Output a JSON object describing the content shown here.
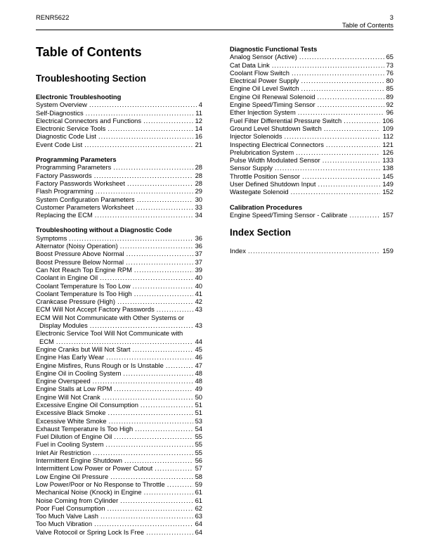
{
  "header": {
    "doc_number": "RENR5622",
    "page_number": "3",
    "section_label": "Table of Contents"
  },
  "title": "Table of Contents",
  "colors": {
    "text": "#000000",
    "page_background": "#ffffff",
    "rule": "#000000"
  },
  "columns": {
    "left": {
      "blocks": [
        {
          "type": "section",
          "label": "Troubleshooting Section"
        },
        {
          "type": "group",
          "label": "Electronic Troubleshooting",
          "entries": [
            {
              "label": "System Overview",
              "page": "4"
            },
            {
              "label": "Self-Diagnostics",
              "page": "11"
            },
            {
              "label": "Electrical Connectors and Functions",
              "page": "12"
            },
            {
              "label": "Electronic Service Tools",
              "page": "14"
            },
            {
              "label": "Diagnostic Code List",
              "page": "16"
            },
            {
              "label": "Event Code List",
              "page": "21"
            }
          ]
        },
        {
          "type": "group",
          "label": "Programming Parameters",
          "entries": [
            {
              "label": "Programming Parameters",
              "page": "28"
            },
            {
              "label": "Factory Passwords",
              "page": "28"
            },
            {
              "label": "Factory Passwords Worksheet",
              "page": "28"
            },
            {
              "label": "Flash Programming",
              "page": "29"
            },
            {
              "label": "System Configuration Parameters",
              "page": "30"
            },
            {
              "label": "Customer Parameters Worksheet",
              "page": "33"
            },
            {
              "label": "Replacing the ECM",
              "page": "34"
            }
          ]
        },
        {
          "type": "group",
          "label": "Troubleshooting without a Diagnostic Code",
          "entries": [
            {
              "label": "Symptoms",
              "page": "36"
            },
            {
              "label": "Alternator (Noisy Operation)",
              "page": "36"
            },
            {
              "label": "Boost Pressure Above Normal",
              "page": "37"
            },
            {
              "label": "Boost Pressure Below Normal",
              "page": "37"
            },
            {
              "label": "Can Not Reach Top Engine RPM",
              "page": "39"
            },
            {
              "label": "Coolant in Engine Oil",
              "page": "40"
            },
            {
              "label": "Coolant Temperature Is Too Low",
              "page": "40"
            },
            {
              "label": "Coolant Temperature Is Too High",
              "page": "41"
            },
            {
              "label": "Crankcase Pressure (High)",
              "page": "42"
            },
            {
              "label": "ECM Will Not Accept Factory Passwords",
              "page": "43"
            },
            {
              "label": "ECM Will Not Communicate with Other Systems or",
              "label2": "Display Modules",
              "page": "43"
            },
            {
              "label": "Electronic Service Tool Will Not Communicate with",
              "label2": "ECM",
              "page": "44"
            },
            {
              "label": "Engine Cranks but Will Not Start",
              "page": "45"
            },
            {
              "label": "Engine Has Early Wear",
              "page": "46"
            },
            {
              "label": "Engine Misfires, Runs Rough or Is Unstable",
              "page": "47"
            },
            {
              "label": "Engine Oil in Cooling System",
              "page": "48"
            },
            {
              "label": "Engine Overspeed",
              "page": "48"
            },
            {
              "label": "Engine Stalls at Low RPM",
              "page": "49"
            },
            {
              "label": "Engine Will Not Crank",
              "page": "50"
            },
            {
              "label": "Excessive Engine Oil Consumption",
              "page": "51"
            },
            {
              "label": "Excessive Black Smoke",
              "page": "51"
            },
            {
              "label": "Excessive White Smoke",
              "page": "53"
            },
            {
              "label": "Exhaust Temperature Is Too High",
              "page": "54"
            },
            {
              "label": "Fuel Dilution of Engine Oil",
              "page": "55"
            },
            {
              "label": "Fuel in Cooling System",
              "page": "55"
            },
            {
              "label": "Inlet Air Restriction",
              "page": "55"
            },
            {
              "label": "Intermittent Engine Shutdown",
              "page": "56"
            },
            {
              "label": "Intermittent Low Power or Power Cutout",
              "page": "57"
            },
            {
              "label": "Low Engine Oil Pressure",
              "page": "58"
            },
            {
              "label": "Low Power/Poor or No Response to Throttle",
              "page": "59"
            },
            {
              "label": "Mechanical Noise (Knock) in Engine",
              "page": "61"
            },
            {
              "label": "Noise Coming from Cylinder",
              "page": "61"
            },
            {
              "label": "Poor Fuel Consumption",
              "page": "62"
            },
            {
              "label": "Too Much Valve Lash",
              "page": "63"
            },
            {
              "label": "Too Much Vibration",
              "page": "64"
            },
            {
              "label": "Valve Rotocoil or Spring Lock Is Free",
              "page": "64"
            }
          ]
        }
      ]
    },
    "right": {
      "blocks": [
        {
          "type": "group",
          "label": "Diagnostic Functional Tests",
          "entries": [
            {
              "label": "Analog Sensor (Active)",
              "page": "65"
            },
            {
              "label": "Cat Data Link",
              "page": "73"
            },
            {
              "label": "Coolant Flow Switch",
              "page": "76"
            },
            {
              "label": "Electrical Power Supply",
              "page": "80"
            },
            {
              "label": "Engine Oil Level Switch",
              "page": "85"
            },
            {
              "label": "Engine Oil Renewal Solenoid",
              "page": "89"
            },
            {
              "label": "Engine Speed/Timing Sensor",
              "page": "92"
            },
            {
              "label": "Ether Injection System",
              "page": "96"
            },
            {
              "label": "Fuel Filter Differential Pressure Switch",
              "page": "106"
            },
            {
              "label": "Ground Level Shutdown Switch",
              "page": "109"
            },
            {
              "label": "Injector Solenoids",
              "page": "112"
            },
            {
              "label": "Inspecting Electrical Connectors",
              "page": "121"
            },
            {
              "label": "Prelubrication System",
              "page": "126"
            },
            {
              "label": "Pulse Width Modulated Sensor",
              "page": "133"
            },
            {
              "label": "Sensor Supply",
              "page": "138"
            },
            {
              "label": "Throttle Position Sensor",
              "page": "145"
            },
            {
              "label": "User Defined Shutdown Input",
              "page": "149"
            },
            {
              "label": "Wastegate Solenoid",
              "page": "152"
            }
          ]
        },
        {
          "type": "group",
          "label": "Calibration Procedures",
          "entries": [
            {
              "label": "Engine Speed/Timing Sensor - Calibrate",
              "page": "157"
            }
          ]
        },
        {
          "type": "section",
          "label": "Index Section"
        },
        {
          "type": "group",
          "label": "",
          "entries": [
            {
              "label": "Index",
              "page": "159"
            }
          ]
        }
      ]
    }
  }
}
